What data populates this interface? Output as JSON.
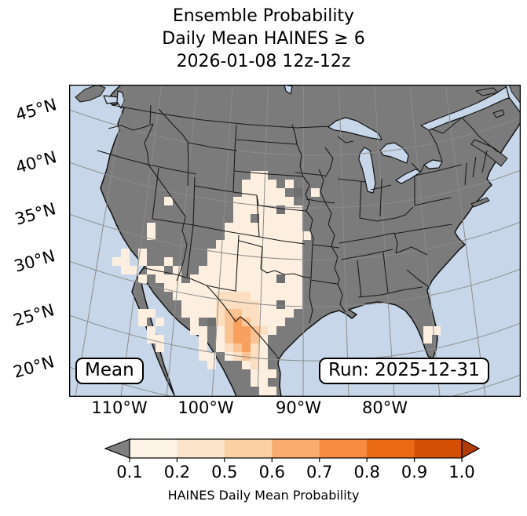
{
  "title": {
    "line1": "Ensemble Probability",
    "line2": "Daily Mean HAINES ≥ 6",
    "line3": "2026-01-08 12z-12z"
  },
  "map": {
    "corner_left_label": "Mean",
    "corner_right_label": "Run: 2025-12-31",
    "lat_labels": [
      "45°N",
      "40°N",
      "35°N",
      "30°N",
      "25°N",
      "20°N"
    ],
    "lon_labels": [
      "110°W",
      "100°W",
      "90°W",
      "80°W"
    ],
    "colors": {
      "ocean": "#c7d7e9",
      "land": "#7b7b7b",
      "graticule": "#8c8c8c",
      "border": "#1a1a1a",
      "frame": "#000000"
    },
    "overlay": {
      "cell_size": 11,
      "palette": {
        "a": "#fcefe0",
        "b": "#fbdfc0",
        "c": "#fac394",
        "d": "#f8a15f",
        "g": "#6f6f6f"
      },
      "rows": [
        "....................................................",
        "....................................................",
        "....................................................",
        "....................................................",
        "....................................................",
        "....................................................",
        "....................................................",
        "....................................................",
        "....................................................",
        "....................................................",
        ".....................aa.............................",
        "....................aaaa.a..........................",
        "....................aaaaa.g.a.......................",
        "...........a.......aaaaaaa..........................",
        "...................aaaaagaa.........................",
        "...................aa.aaaaa.........................",
        ".........a........aaaaaaaaa.........................",
        ".........a........aaaaaaaaaa........................",
        ".................aaaaaaaaaa.........................",
        "......a.a.......aaaaaaaaaaa.........................",
        ".....aa.a..a....aaaaaaaaaaa.........................",
        "......aa.aa.a..aaaaaaaaaaaa.........................",
        "........a.aaa.aaaaaaaaaagaa.........................",
        "...........aaaaaaaaaaaaaaaa.........................",
        "............aaaaabbbbaaaaaa.........................",
        ".............aaaabbbbbaagaa.........................",
        "........aa...aaaabccbbaaaa..........................",
        "........a.a...a.gbcdcbaaa...........................",
        ".........a....aa.acddcba.................aa.........",
        ".........aa....a.acddca..................a..........",
        "..........a....a.abcdba.............................",
        "...............aa.abcba.............................",
        "................a...aba.............................",
        ".....................aaa............................",
        ".....................aa.............................",
        "......................aa............................"
      ]
    }
  },
  "colorbar": {
    "label": "HAINES Daily Mean Probability",
    "ticks": [
      "0.1",
      "0.2",
      "0.5",
      "0.6",
      "0.7",
      "0.8",
      "0.9",
      "1.0"
    ],
    "segment_colors": [
      "#fdf3e7",
      "#fce4ca",
      "#fbd0a4",
      "#faac6e",
      "#f78b3f",
      "#ea6a14",
      "#d24f03"
    ],
    "under_color": "#7f7f7f",
    "over_color": "#b03d03"
  }
}
